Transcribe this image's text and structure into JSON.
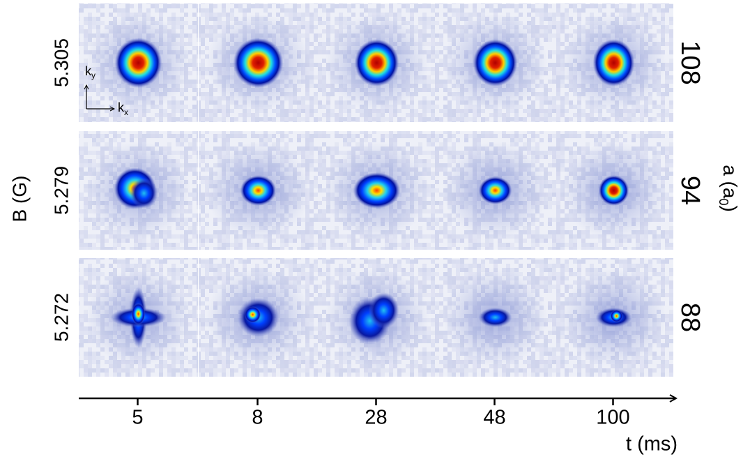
{
  "axes": {
    "b_label": "B (G)",
    "a_label": {
      "text": "a (a",
      "sub": "0",
      "close": ")"
    },
    "t_label": "t (ms)"
  },
  "rows": [
    {
      "b": "5.305",
      "a": "108"
    },
    {
      "b": "5.279",
      "a": "94"
    },
    {
      "b": "5.272",
      "a": "88"
    }
  ],
  "times": [
    "5",
    "8",
    "28",
    "48",
    "100"
  ],
  "inset": {
    "ky": {
      "text": "k",
      "sub": "y"
    },
    "kx": {
      "text": "k",
      "sub": "x"
    }
  }
}
